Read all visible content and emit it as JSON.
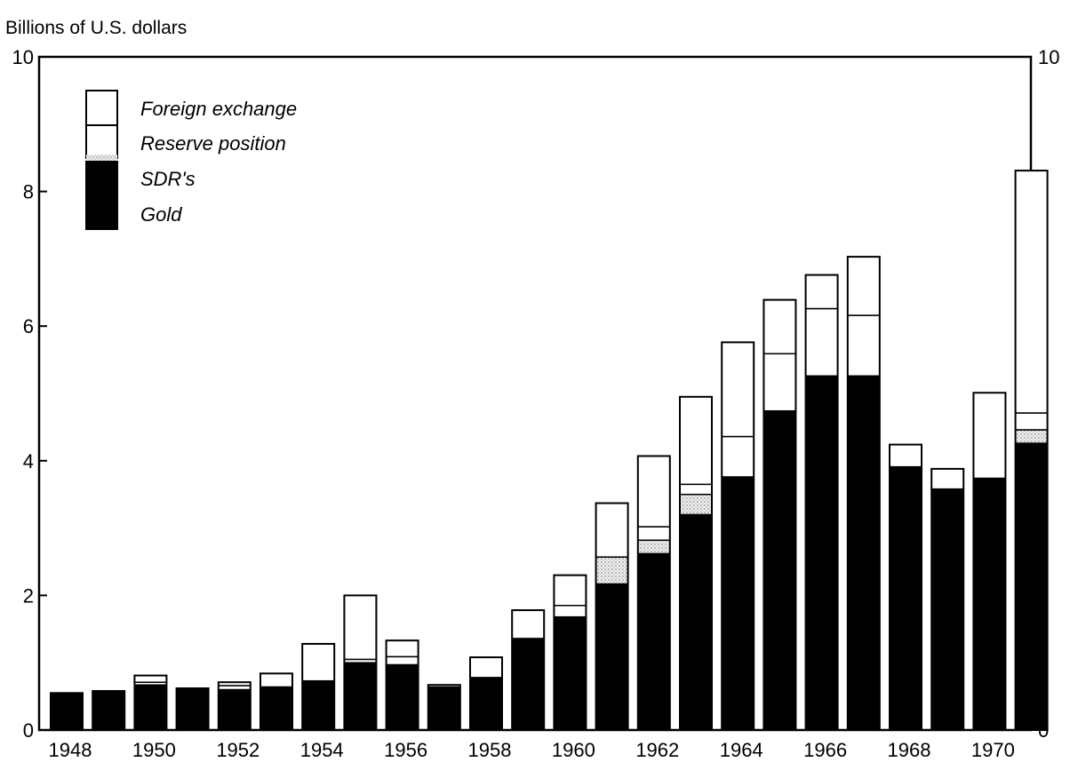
{
  "chart_data": {
    "type": "bar",
    "stacked": true,
    "ylabel": "Billions of U.S. dollars",
    "ylim": [
      0,
      10
    ],
    "yticks": [
      0,
      2,
      4,
      6,
      8,
      10
    ],
    "grid": false,
    "legend_position": "top-left",
    "x": [
      1948,
      1949,
      1950,
      1951,
      1952,
      1953,
      1954,
      1955,
      1956,
      1957,
      1958,
      1959,
      1960,
      1961,
      1962,
      1963,
      1964,
      1965,
      1966,
      1967,
      1968,
      1969,
      1970,
      1971
    ],
    "xticklabels": [
      "1948",
      "1950",
      "1952",
      "1954",
      "1956",
      "1958",
      "1960",
      "1962",
      "1964",
      "1966",
      "1968",
      "1970"
    ],
    "series": [
      {
        "name": "Gold",
        "fill": "#000000",
        "values": [
          0.55,
          0.58,
          0.67,
          0.62,
          0.6,
          0.64,
          0.73,
          1.0,
          0.97,
          0.62,
          0.78,
          1.35,
          1.68,
          2.17,
          2.62,
          3.2,
          3.76,
          4.74,
          5.26,
          5.26,
          3.91,
          3.58,
          3.74,
          4.26
        ]
      },
      {
        "name": "SDR's",
        "fill": "#d8d8d8",
        "values": [
          0,
          0,
          0,
          0,
          0,
          0,
          0,
          0,
          0,
          0,
          0,
          0,
          0,
          0.4,
          0.2,
          0.3,
          0,
          0,
          0,
          0,
          0,
          0,
          0,
          0.2
        ]
      },
      {
        "name": "Reserve position",
        "fill": "#ffffff",
        "values": [
          0,
          0,
          0.04,
          0,
          0.06,
          0,
          0,
          0.05,
          0.12,
          0.02,
          0,
          0.01,
          0.17,
          0,
          0.2,
          0.15,
          0.6,
          0.85,
          1.0,
          0.9,
          0,
          0,
          0,
          0.25
        ]
      },
      {
        "name": "Foreign exchange",
        "fill": "#ffffff",
        "values": [
          0,
          0,
          0.1,
          0,
          0.05,
          0.2,
          0.55,
          0.95,
          0.24,
          0.03,
          0.3,
          0.42,
          0.45,
          0.8,
          1.05,
          1.3,
          1.4,
          0.8,
          0.5,
          0.87,
          0.33,
          0.3,
          1.27,
          3.6
        ]
      }
    ]
  }
}
